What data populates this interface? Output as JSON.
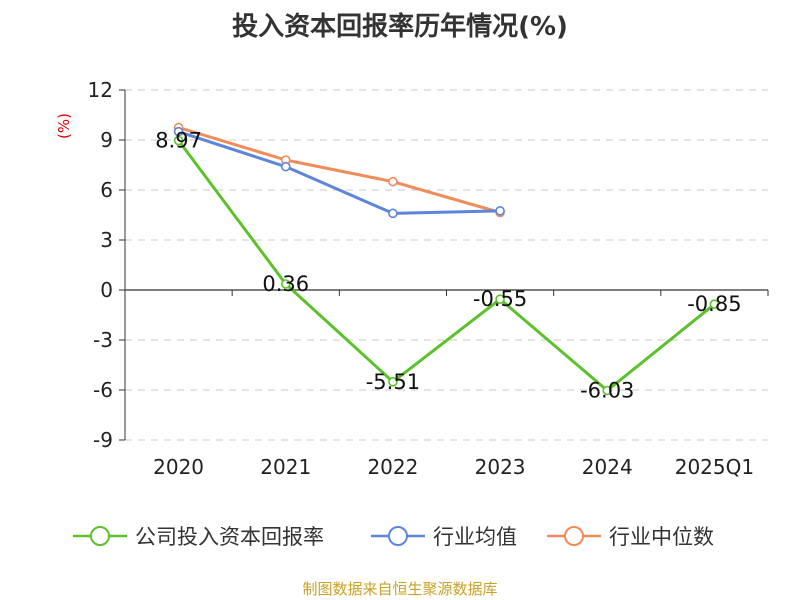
{
  "title": "投入资本回报率历年情况(%)",
  "source": "制图数据来自恒生聚源数据库",
  "chart_data": {
    "type": "line",
    "title": "投入资本回报率历年情况(%)",
    "ylabel": "(%)",
    "xlabel": "",
    "ylim": [
      -9,
      12
    ],
    "yticks": [
      12,
      9,
      6,
      3,
      0,
      -3,
      -6,
      -9
    ],
    "categories": [
      "2020",
      "2021",
      "2022",
      "2023",
      "2024",
      "2025Q1"
    ],
    "grid": true,
    "legend_position": "bottom",
    "series": [
      {
        "name": "公司投入资本回报率",
        "color": "#5cc12b",
        "values": [
          8.97,
          0.36,
          -5.51,
          -0.55,
          -6.03,
          -0.85
        ],
        "labels": true
      },
      {
        "name": "行业均值",
        "color": "#5b86d9",
        "values": [
          9.5,
          7.4,
          4.6,
          4.75,
          null,
          null
        ],
        "labels": false
      },
      {
        "name": "行业中位数",
        "color": "#f08c5a",
        "values": [
          9.75,
          7.8,
          6.5,
          4.65,
          null,
          null
        ],
        "labels": false
      }
    ],
    "data_labels": [
      "8.97",
      "0.36",
      "-5.51",
      "-0.55",
      "-6.03",
      "-0.85"
    ]
  }
}
